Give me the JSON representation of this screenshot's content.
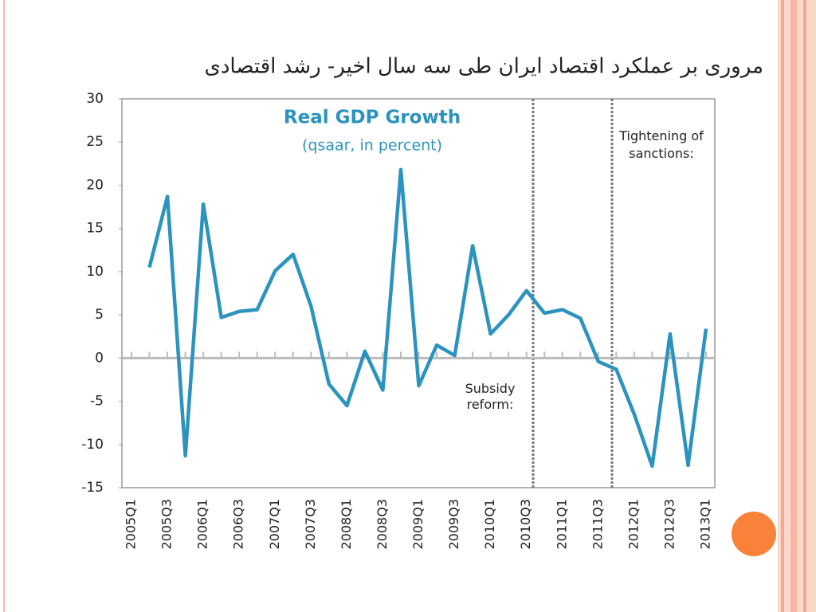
{
  "slide_title": "مروری بر عملکرد اقتصاد ایران طی سه سال اخیر- رشد اقتصادی",
  "chart_data": {
    "type": "line",
    "title": "Real GDP Growth",
    "subtitle": "(qsaar, in percent)",
    "annotations": [
      "Subsidy reform:",
      "Tightening of sanctions:"
    ],
    "categories": [
      "2005Q1",
      null,
      "2005Q3",
      null,
      "2006Q1",
      null,
      "2006Q3",
      null,
      "2007Q1",
      null,
      "2007Q3",
      null,
      "2008Q1",
      null,
      "2008Q3",
      null,
      "2009Q1",
      null,
      "2009Q3",
      null,
      "2010Q1",
      null,
      "2010Q3",
      null,
      "2011Q1",
      null,
      "2011Q3",
      null,
      "2012Q1",
      null,
      "2012Q3",
      null,
      "2013Q1"
    ],
    "series": [
      {
        "name": "Real GDP Growth",
        "color": "#2b93bd",
        "values": [
          null,
          10.5,
          18.7,
          -11.3,
          17.8,
          4.7,
          5.4,
          5.6,
          10.1,
          12.0,
          6.0,
          -3.0,
          -5.5,
          0.8,
          -3.7,
          21.8,
          -3.2,
          1.5,
          0.3,
          13.0,
          2.8,
          5.0,
          7.8,
          5.2,
          5.6,
          4.6,
          -0.4,
          -1.3,
          -6.5,
          -12.5,
          2.8,
          -12.4,
          3.4
        ]
      }
    ],
    "ylim": [
      -15,
      30
    ],
    "yticks": [
      -15,
      -10,
      -5,
      0,
      5,
      10,
      15,
      20,
      25,
      30
    ]
  }
}
